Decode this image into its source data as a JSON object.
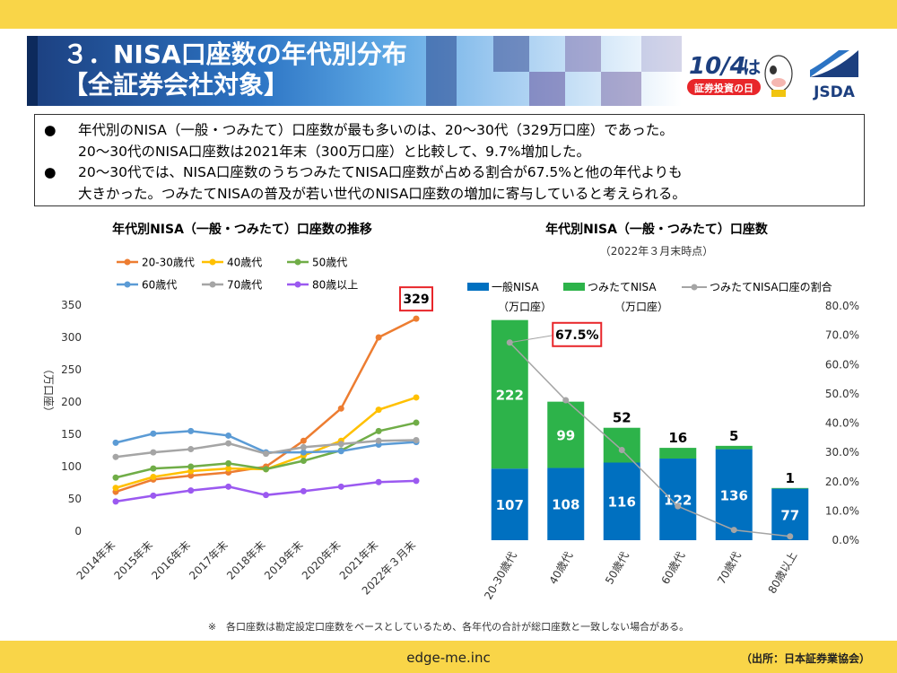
{
  "header": {
    "title_line1": "３．NISA口座数の年代別分布",
    "title_line2": "【全証券会社対象】"
  },
  "logos": {
    "event_logo_text": "10/4は 証券投資の日",
    "org_logo_text": "JSDA"
  },
  "bullets": [
    {
      "symbol": "●",
      "line1": "年代別のNISA（一般・つみたて）口座数が最も多いのは、20～30代（329万口座）であった。",
      "line2": "20～30代のNISA口座数は2021年末（300万口座）と比較して、9.7%増加した。"
    },
    {
      "symbol": "●",
      "line1": "20～30代では、NISA口座数のうちつみたてNISA口座数が占める割合が67.5%と他の年代よりも",
      "line2": "大きかった。つみたてNISAの普及が若い世代のNISA口座数の増加に寄与していると考えられる。"
    }
  ],
  "chart_data": [
    {
      "type": "line",
      "title": "年代別NISA（一般・つみたて）口座数の推移",
      "ylabel": "（万口座）",
      "xlabel": "",
      "x": [
        "2014年末",
        "2015年末",
        "2016年末",
        "2017年末",
        "2018年末",
        "2019年末",
        "2020年末",
        "2021年末",
        "2022年３月末"
      ],
      "ylim": [
        0,
        350
      ],
      "yticks": [
        0,
        50,
        100,
        150,
        200,
        250,
        300,
        350
      ],
      "grid": false,
      "legend_position": "top",
      "series": [
        {
          "name": "20-30歳代",
          "color": "#ed7d31",
          "values": [
            61,
            80,
            86,
            91,
            100,
            140,
            190,
            300,
            329
          ]
        },
        {
          "name": "40歳代",
          "color": "#ffc000",
          "values": [
            67,
            84,
            93,
            97,
            96,
            117,
            140,
            188,
            207
          ]
        },
        {
          "name": "50歳代",
          "color": "#70ad47",
          "values": [
            83,
            97,
            100,
            105,
            96,
            109,
            125,
            155,
            168
          ]
        },
        {
          "name": "60歳代",
          "color": "#5b9bd5",
          "values": [
            137,
            151,
            155,
            148,
            122,
            122,
            124,
            134,
            138
          ]
        },
        {
          "name": "70歳代",
          "color": "#a5a5a5",
          "values": [
            115,
            122,
            127,
            136,
            120,
            130,
            135,
            140,
            141
          ]
        },
        {
          "name": "80歳以上",
          "color": "#9b59f0",
          "values": [
            46,
            55,
            63,
            69,
            56,
            62,
            69,
            76,
            78
          ]
        }
      ],
      "annotation": {
        "label": "329",
        "series": "20-30歳代",
        "x": "2022年３月末"
      }
    },
    {
      "type": "bar",
      "title": "年代別NISA（一般・つみたて）口座数",
      "subtitle": "（2022年３月末時点）",
      "categories": [
        "20-30歳代",
        "40歳代",
        "50歳代",
        "60歳代",
        "70歳代",
        "80歳以上"
      ],
      "stacked": true,
      "ylim": [
        0,
        350
      ],
      "y2lim": [
        0,
        80
      ],
      "y2ticks": [
        "0.0%",
        "10.0%",
        "20.0%",
        "30.0%",
        "40.0%",
        "50.0%",
        "60.0%",
        "70.0%",
        "80.0%"
      ],
      "legend_position": "top",
      "series": [
        {
          "name": "一般NISA",
          "unit": "（万口座）",
          "color": "#0070c0",
          "values": [
            107,
            108,
            116,
            122,
            136,
            77
          ]
        },
        {
          "name": "つみたてNISA",
          "unit": "（万口座）",
          "color": "#2db34a",
          "values": [
            222,
            99,
            52,
            16,
            5,
            1
          ]
        },
        {
          "name": "つみたてNISA口座の割合",
          "color": "#a5a5a5",
          "axis": "secondary",
          "values": [
            67.5,
            47.8,
            30.8,
            11.6,
            3.5,
            1.3
          ]
        }
      ],
      "annotation": {
        "label": "67.5%",
        "category": "20-30歳代"
      }
    }
  ],
  "footnote": "※　各口座数は勘定設定口座数をベースとしているため、各年代の合計が総口座数と一致しない場合がある。",
  "footer": {
    "url": "edge-me.inc",
    "source": "（出所：日本証券業協会）"
  }
}
